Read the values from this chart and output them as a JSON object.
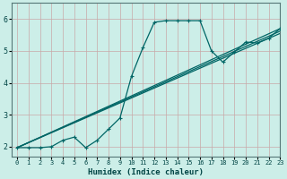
{
  "xlabel": "Humidex (Indice chaleur)",
  "bg_color": "#cceee8",
  "grid_color": "#c8a8a8",
  "line_color": "#006666",
  "xlim": [
    -0.5,
    23
  ],
  "ylim": [
    1.7,
    6.5
  ],
  "xticks": [
    0,
    1,
    2,
    3,
    4,
    5,
    6,
    7,
    8,
    9,
    10,
    11,
    12,
    13,
    14,
    15,
    16,
    17,
    18,
    19,
    20,
    21,
    22,
    23
  ],
  "yticks": [
    2,
    3,
    4,
    5,
    6
  ],
  "series1_x": [
    0,
    1,
    2,
    3,
    4,
    5,
    6,
    7,
    8,
    9,
    10,
    11,
    12,
    13,
    14,
    15,
    16,
    17,
    18,
    19,
    20,
    21,
    22,
    23
  ],
  "series1_y": [
    1.97,
    1.97,
    1.97,
    2.0,
    2.2,
    2.3,
    1.97,
    2.2,
    2.55,
    2.9,
    4.2,
    5.1,
    5.9,
    5.95,
    5.95,
    5.95,
    5.95,
    5.0,
    4.65,
    4.97,
    5.28,
    5.25,
    5.4,
    5.7
  ],
  "series2_x": [
    0,
    23
  ],
  "series2_y": [
    1.97,
    5.7
  ],
  "series3_x": [
    0,
    23
  ],
  "series3_y": [
    1.97,
    5.55
  ],
  "series4_x": [
    0,
    23
  ],
  "series4_y": [
    1.97,
    5.62
  ]
}
